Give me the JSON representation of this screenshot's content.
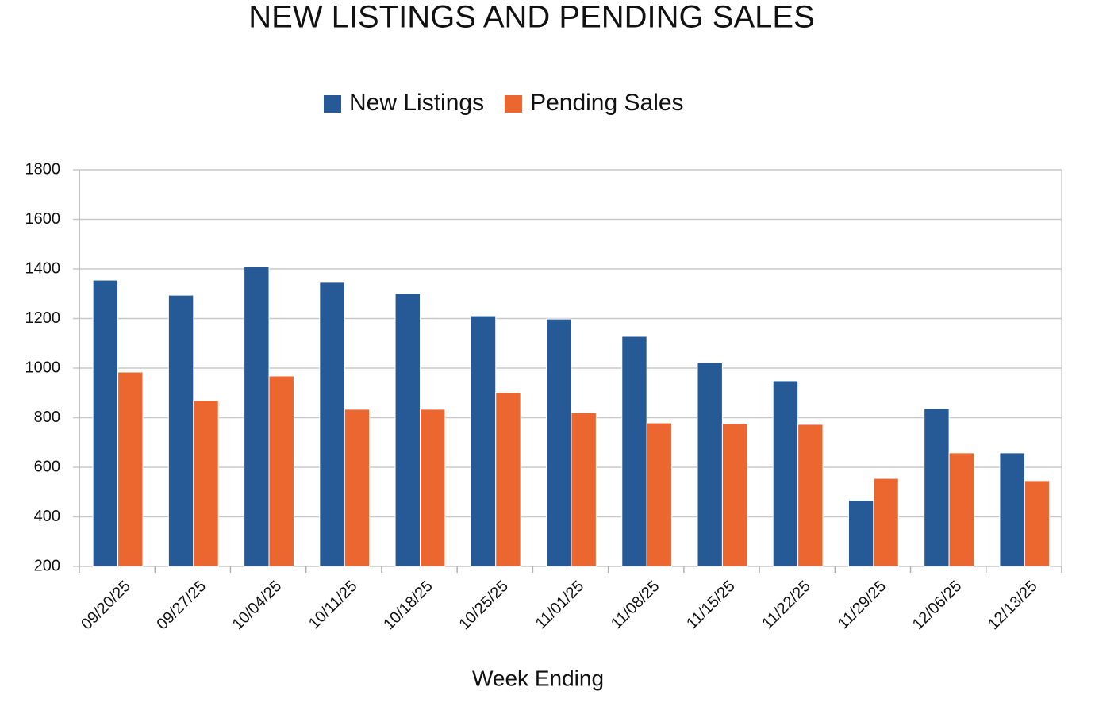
{
  "chart_data": {
    "type": "bar",
    "title": "NEW LISTINGS AND PENDING SALES",
    "x_label": "Week Ending",
    "categories": [
      "09/20/25",
      "09/27/25",
      "10/04/25",
      "10/11/25",
      "10/18/25",
      "10/25/25",
      "11/01/25",
      "11/08/25",
      "11/15/25",
      "11/22/25",
      "11/29/25",
      "12/06/25",
      "12/13/25"
    ],
    "series": [
      {
        "name": "New Listings",
        "color": "#265a96",
        "values": [
          1355,
          1294,
          1410,
          1346,
          1301,
          1211,
          1198,
          1128,
          1022,
          949,
          466,
          837,
          658
        ]
      },
      {
        "name": "Pending Sales",
        "color": "#ec6730",
        "values": [
          984,
          869,
          968,
          834,
          834,
          901,
          821,
          779,
          776,
          773,
          555,
          658,
          546
        ]
      }
    ],
    "ylim": [
      200,
      1800
    ],
    "yticks": [
      200,
      400,
      600,
      800,
      1000,
      1200,
      1400,
      1600,
      1800
    ],
    "grid": true,
    "legend": "top"
  }
}
